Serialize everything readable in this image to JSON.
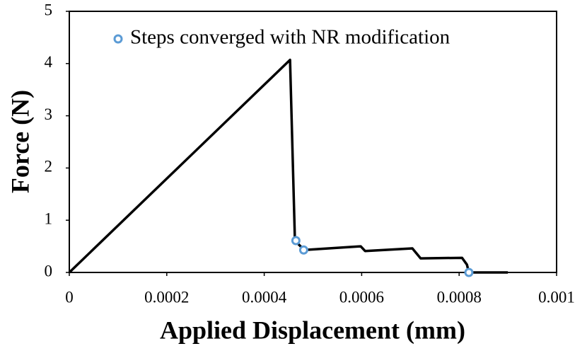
{
  "chart_data": {
    "type": "line",
    "x_label": "Applied Displacement (mm)",
    "y_label": "Force (N)",
    "xlim": [
      0,
      0.001
    ],
    "xticks": [
      0,
      0.0002,
      0.0004,
      0.0006,
      0.0008,
      0.001
    ],
    "ylim": [
      0,
      5
    ],
    "yticks": [
      0,
      1,
      2,
      3,
      4,
      5
    ],
    "grid": false,
    "legend_position": "top",
    "series": [
      {
        "color": "#000000",
        "kind": "line",
        "x": [
          0,
          0.000453,
          0.000463,
          0.000482,
          0.000598,
          0.000607,
          0.000704,
          0.000721,
          0.000806,
          0.000816,
          0.00082,
          0.0009
        ],
        "values": [
          0,
          4.07,
          0.61,
          0.43,
          0.5,
          0.41,
          0.46,
          0.27,
          0.28,
          0.15,
          0,
          0
        ]
      },
      {
        "name": "Steps converged with NR modification",
        "color": "#5b9bd5",
        "kind": "marker",
        "x": [
          0.000465,
          0.000481,
          0.00082
        ],
        "values": [
          0.61,
          0.43,
          0
        ]
      }
    ]
  }
}
